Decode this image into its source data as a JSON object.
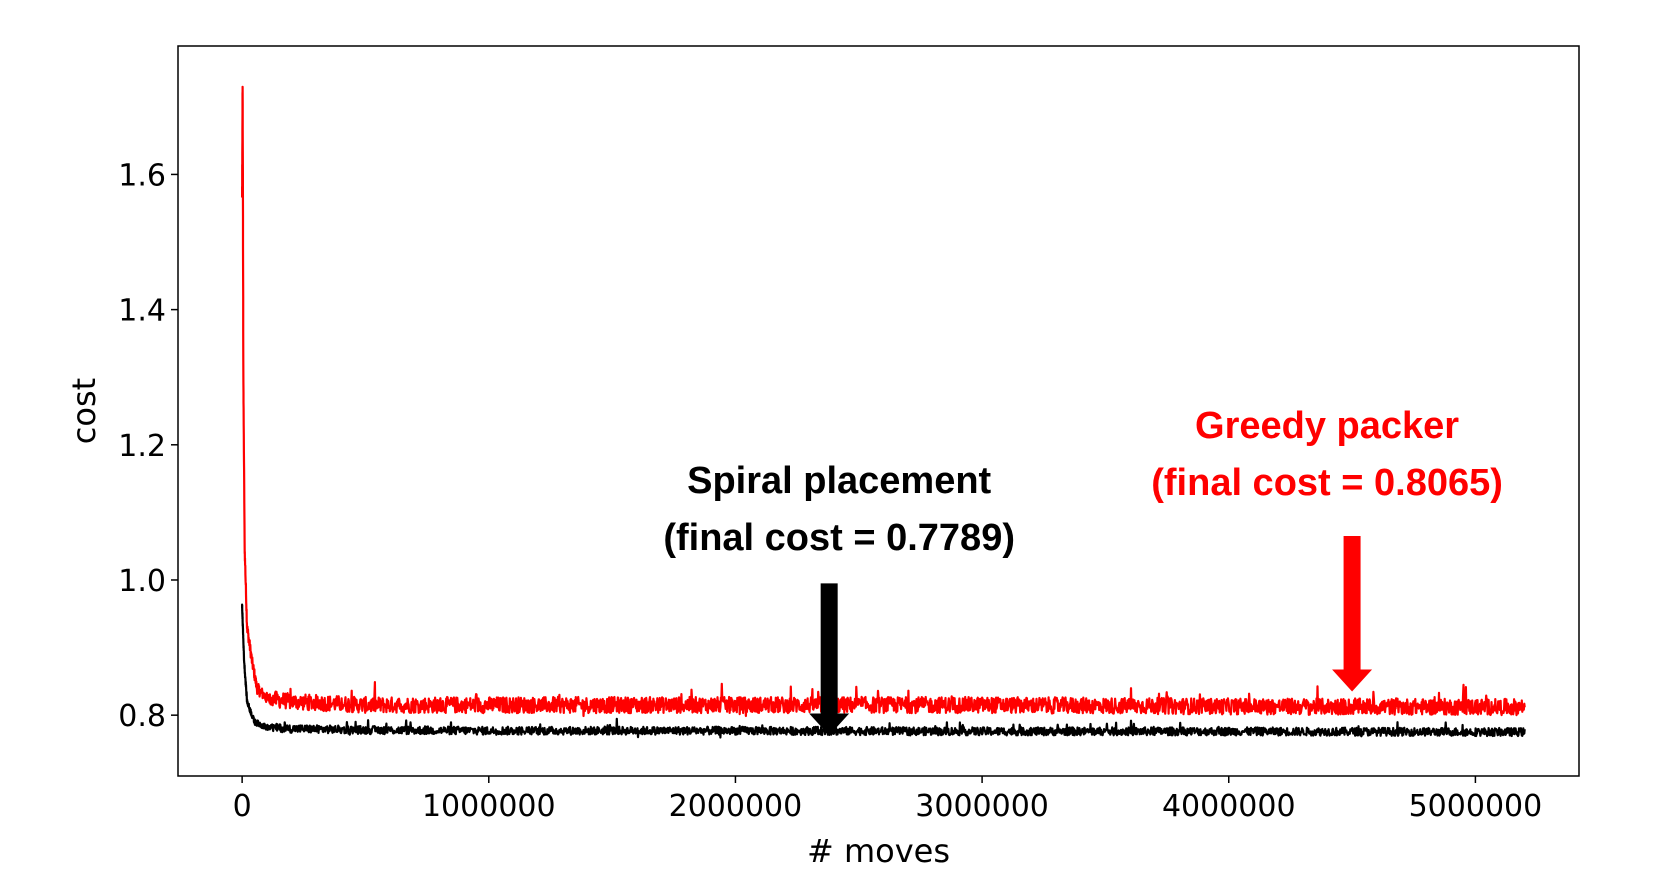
{
  "chart_data": {
    "type": "line",
    "xlabel": "# moves",
    "ylabel": "cost",
    "xlim": [
      -260000,
      5420000
    ],
    "ylim": [
      0.71,
      1.79
    ],
    "xticks": [
      0,
      1000000,
      2000000,
      3000000,
      4000000,
      5000000
    ],
    "xtick_labels": [
      "0",
      "1000000",
      "2000000",
      "3000000",
      "4000000",
      "5000000"
    ],
    "yticks": [
      0.8,
      1.0,
      1.2,
      1.4,
      1.6
    ],
    "ytick_labels": [
      "0.8",
      "1.0",
      "1.2",
      "1.4",
      "1.6"
    ],
    "grid": false,
    "series": [
      {
        "color": "#ff0000",
        "x": [
          0,
          2000,
          5000,
          10000,
          20000,
          40000,
          60000,
          100000,
          200000,
          500000,
          1000000,
          2000000,
          3000000,
          4000000,
          5200000
        ],
        "y": [
          1.57,
          1.74,
          1.3,
          1.05,
          0.93,
          0.88,
          0.84,
          0.825,
          0.82,
          0.815,
          0.815,
          0.815,
          0.815,
          0.813,
          0.812
        ],
        "noise": 0.012,
        "final": 0.8065
      },
      {
        "color": "#000000",
        "x": [
          0,
          3000,
          8000,
          20000,
          50000,
          100000,
          200000,
          500000,
          1000000,
          2000000,
          3000000,
          4000000,
          5200000
        ],
        "y": [
          0.96,
          0.93,
          0.88,
          0.82,
          0.79,
          0.782,
          0.78,
          0.778,
          0.777,
          0.777,
          0.776,
          0.776,
          0.775
        ],
        "noise": 0.006,
        "final": 0.7789
      }
    ],
    "annotations": [
      {
        "line1": "Spiral placement",
        "line2": "(final cost = 0.7789)",
        "color": "#000000",
        "arrow_x": 2380000,
        "arrow_y_top": 0.995,
        "arrow_y_tip": 0.77
      },
      {
        "line1": "Greedy packer",
        "line2": "(final cost = 0.8065)",
        "color": "#ff0000",
        "arrow_x": 4500000,
        "arrow_y_top": 1.065,
        "arrow_y_tip": 0.835
      }
    ]
  }
}
